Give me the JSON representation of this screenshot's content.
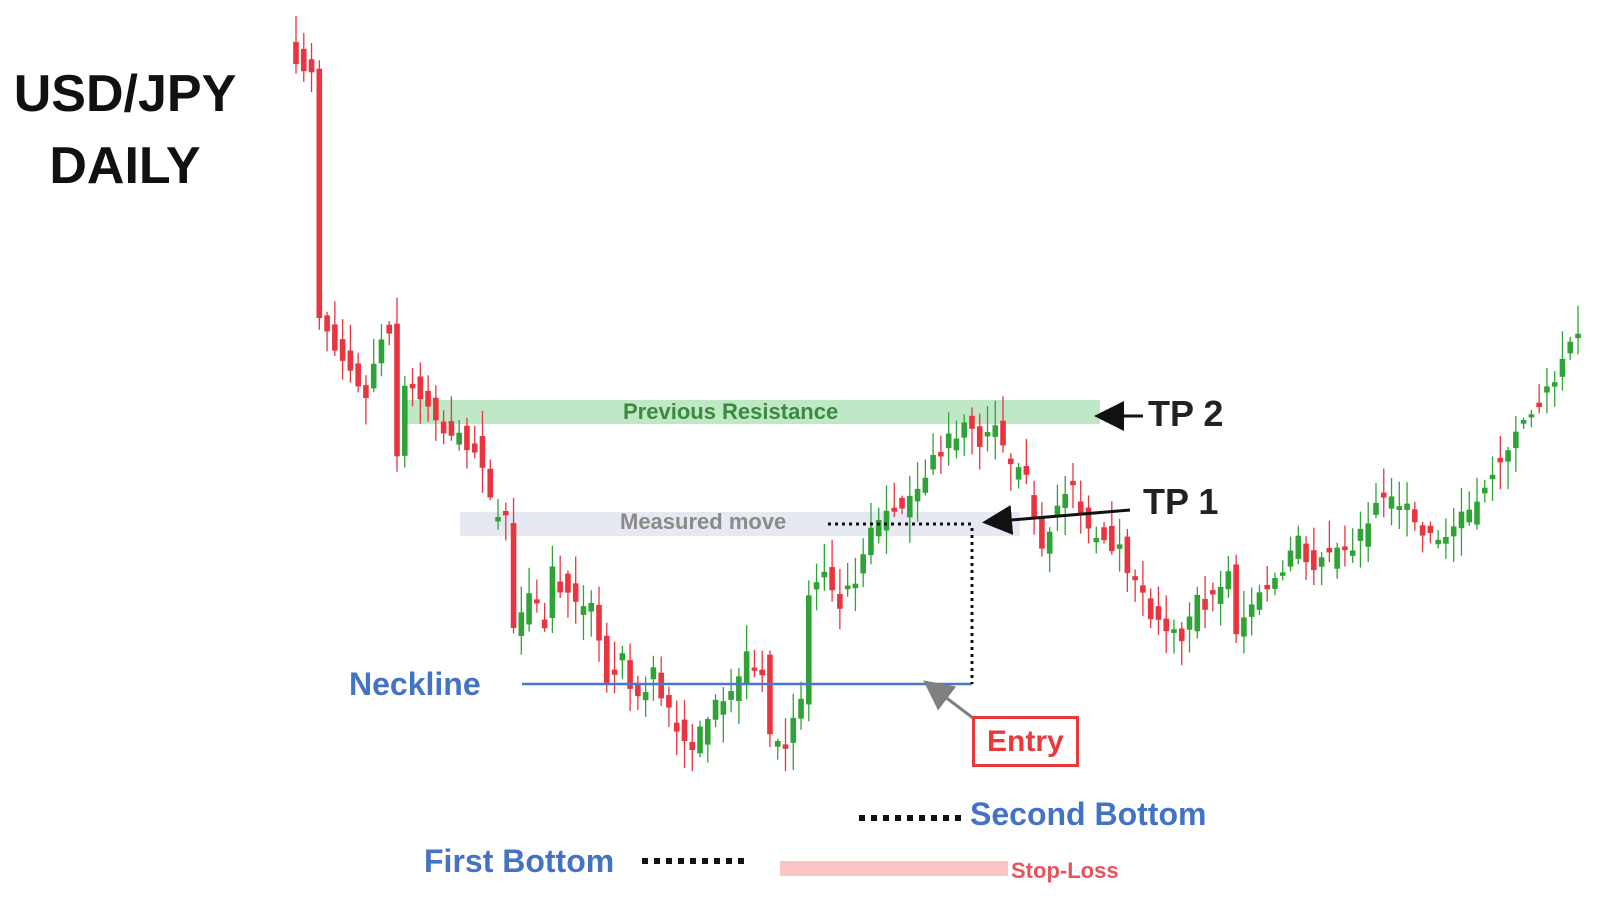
{
  "chart_data": {
    "type": "candlestick",
    "title_lines": [
      "USD/JPY",
      "DAILY"
    ],
    "grid": false,
    "colors": {
      "up": "#2fa336",
      "down": "#e8353f",
      "wick": "#7a7a7a",
      "neckline": "#4a78c9",
      "resistance_zone": "#bfe8c6",
      "measured_zone": "#e6e9f2",
      "stop_zone": "#f9c4c4",
      "label_blue": "#4472c4",
      "entry_red": "#e83a3a"
    },
    "price_range": [
      93.0,
      104.0
    ],
    "levels": {
      "previous_resistance": [
        99.6,
        99.3
      ],
      "measured_move": [
        98.5,
        98.2
      ],
      "neckline": 96.5,
      "stop_loss": [
        94.38,
        94.2
      ]
    },
    "close_path": [
      [
        0,
        103.8
      ],
      [
        2,
        103.5
      ],
      [
        3,
        100.2
      ],
      [
        5,
        99.8
      ],
      [
        7,
        99.5
      ],
      [
        9,
        99.2
      ],
      [
        11,
        100.0
      ],
      [
        12,
        100.1
      ],
      [
        13,
        98.4
      ],
      [
        14,
        99.4
      ],
      [
        16,
        99.2
      ],
      [
        18,
        98.8
      ],
      [
        21,
        98.6
      ],
      [
        23,
        98.5
      ],
      [
        25,
        97.7
      ],
      [
        27,
        97.5
      ],
      [
        28,
        96.1
      ],
      [
        30,
        96.4
      ],
      [
        32,
        96.1
      ],
      [
        33,
        96.8
      ],
      [
        36,
        96.3
      ],
      [
        38,
        96.4
      ],
      [
        40,
        95.3
      ],
      [
        42,
        95.6
      ],
      [
        44,
        95.0
      ],
      [
        46,
        95.5
      ],
      [
        48,
        94.9
      ],
      [
        50,
        94.4
      ],
      [
        52,
        94.6
      ],
      [
        53,
        94.9
      ],
      [
        55,
        95.0
      ],
      [
        58,
        95.6
      ],
      [
        60,
        95.5
      ],
      [
        61,
        94.6
      ],
      [
        63,
        94.5
      ],
      [
        65,
        95.0
      ],
      [
        66,
        96.5
      ],
      [
        68,
        96.7
      ],
      [
        70,
        96.4
      ],
      [
        72,
        96.7
      ],
      [
        74,
        97.3
      ],
      [
        76,
        97.6
      ],
      [
        78,
        97.7
      ],
      [
        80,
        98.0
      ],
      [
        82,
        98.3
      ],
      [
        83,
        98.4
      ],
      [
        84,
        98.6
      ],
      [
        86,
        98.8
      ],
      [
        88,
        98.6
      ],
      [
        90,
        98.7
      ],
      [
        92,
        98.2
      ],
      [
        94,
        98.0
      ],
      [
        96,
        97.2
      ],
      [
        98,
        97.7
      ],
      [
        100,
        97.9
      ],
      [
        102,
        97.4
      ],
      [
        104,
        97.3
      ],
      [
        106,
        97.1
      ],
      [
        108,
        96.7
      ],
      [
        110,
        96.2
      ],
      [
        112,
        95.9
      ],
      [
        114,
        95.9
      ],
      [
        116,
        96.4
      ],
      [
        118,
        96.4
      ],
      [
        120,
        96.8
      ],
      [
        121,
        95.9
      ],
      [
        123,
        96.4
      ],
      [
        125,
        96.6
      ],
      [
        127,
        96.9
      ],
      [
        129,
        97.2
      ],
      [
        131,
        96.8
      ],
      [
        133,
        97.0
      ],
      [
        135,
        97.0
      ],
      [
        137,
        97.3
      ],
      [
        139,
        97.7
      ],
      [
        141,
        97.8
      ],
      [
        143,
        97.6
      ],
      [
        145,
        97.3
      ],
      [
        147,
        97.2
      ],
      [
        149,
        97.4
      ],
      [
        151,
        97.6
      ],
      [
        153,
        98.0
      ],
      [
        155,
        98.4
      ],
      [
        157,
        98.7
      ],
      [
        159,
        98.9
      ],
      [
        161,
        99.2
      ],
      [
        163,
        99.7
      ],
      [
        165,
        100.1
      ]
    ],
    "annotations": {
      "resistance_label": "Previous Resistance",
      "measured_label": "Measured move",
      "tp2": "TP 2",
      "tp1": "TP 1",
      "neckline": "Neckline",
      "entry": "Entry",
      "first_bottom": "First Bottom",
      "second_bottom": "Second Bottom",
      "stop_loss": "Stop-Loss"
    }
  }
}
